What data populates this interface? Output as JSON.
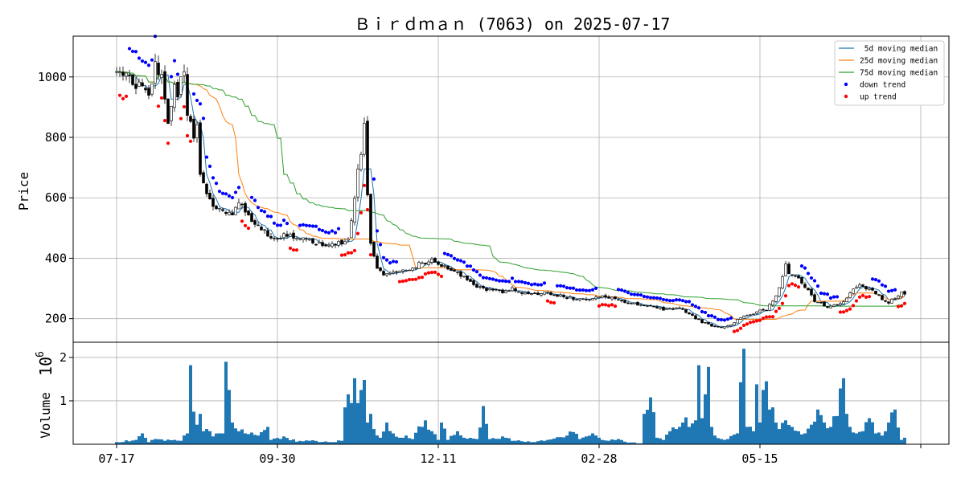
{
  "chart_data": {
    "type": "candlestick",
    "title": "Ｂｉｒｄｍａｎ (7063) on 2025-07-17",
    "ylabel_price": "Price",
    "ylabel_volume": "Volume",
    "volume_exponent_base": "10",
    "volume_exponent_power": "6",
    "price_ylim": [
      122,
      1135
    ],
    "price_yticks": [
      200,
      400,
      600,
      800,
      1000
    ],
    "volume_ylim": [
      0,
      2.35
    ],
    "volume_yticks": [
      1,
      2
    ],
    "x_ticks": [
      {
        "index": 0,
        "label": "07-17"
      },
      {
        "index": 50,
        "label": "09-30"
      },
      {
        "index": 100,
        "label": "12-11"
      },
      {
        "index": 150,
        "label": "02-28"
      },
      {
        "index": 200,
        "label": "05-15"
      },
      {
        "index": 250,
        "label": ""
      }
    ],
    "grid": true,
    "legend_position": "top-right",
    "legend": [
      {
        "label": " 5d moving median",
        "color": "#1f77b4",
        "kind": "line"
      },
      {
        "label": "25d moving median",
        "color": "#ff7f0e",
        "kind": "line"
      },
      {
        "label": "75d moving median",
        "color": "#2ca02c",
        "kind": "line"
      },
      {
        "label": "down trend",
        "color": "#0000ff",
        "kind": "dot"
      },
      {
        "label": "up trend",
        "color": "#ff0000",
        "kind": "dot"
      }
    ],
    "n_days": 246,
    "anchors": [
      [
        0,
        1020
      ],
      [
        5,
        990
      ],
      [
        8,
        955
      ],
      [
        10,
        935
      ],
      [
        12,
        1040
      ],
      [
        14,
        1000
      ],
      [
        16,
        850
      ],
      [
        18,
        960
      ],
      [
        19,
        940
      ],
      [
        20,
        990
      ],
      [
        21,
        1010
      ],
      [
        22,
        880
      ],
      [
        24,
        800
      ],
      [
        25,
        850
      ],
      [
        26,
        680
      ],
      [
        27,
        640
      ],
      [
        28,
        610
      ],
      [
        30,
        570
      ],
      [
        33,
        560
      ],
      [
        36,
        545
      ],
      [
        38,
        580
      ],
      [
        40,
        560
      ],
      [
        42,
        520
      ],
      [
        44,
        500
      ],
      [
        46,
        490
      ],
      [
        48,
        470
      ],
      [
        50,
        470
      ],
      [
        53,
        480
      ],
      [
        55,
        470
      ],
      [
        58,
        470
      ],
      [
        60,
        460
      ],
      [
        63,
        450
      ],
      [
        66,
        445
      ],
      [
        68,
        450
      ],
      [
        70,
        455
      ],
      [
        72,
        470
      ],
      [
        73,
        520
      ],
      [
        74,
        600
      ],
      [
        75,
        700
      ],
      [
        76,
        750
      ],
      [
        77,
        860
      ],
      [
        78,
        620
      ],
      [
        79,
        450
      ],
      [
        80,
        400
      ],
      [
        81,
        370
      ],
      [
        83,
        340
      ],
      [
        85,
        350
      ],
      [
        88,
        360
      ],
      [
        90,
        360
      ],
      [
        92,
        370
      ],
      [
        94,
        380
      ],
      [
        96,
        385
      ],
      [
        98,
        400
      ],
      [
        100,
        380
      ],
      [
        103,
        370
      ],
      [
        106,
        350
      ],
      [
        110,
        320
      ],
      [
        113,
        300
      ],
      [
        116,
        295
      ],
      [
        120,
        290
      ],
      [
        123,
        300
      ],
      [
        126,
        285
      ],
      [
        130,
        280
      ],
      [
        133,
        285
      ],
      [
        136,
        280
      ],
      [
        140,
        270
      ],
      [
        143,
        265
      ],
      [
        146,
        265
      ],
      [
        150,
        275
      ],
      [
        153,
        270
      ],
      [
        156,
        260
      ],
      [
        160,
        250
      ],
      [
        163,
        245
      ],
      [
        166,
        240
      ],
      [
        168,
        235
      ],
      [
        170,
        230
      ],
      [
        172,
        230
      ],
      [
        174,
        235
      ],
      [
        176,
        230
      ],
      [
        178,
        215
      ],
      [
        180,
        200
      ],
      [
        182,
        190
      ],
      [
        184,
        180
      ],
      [
        186,
        175
      ],
      [
        188,
        170
      ],
      [
        190,
        175
      ],
      [
        192,
        190
      ],
      [
        194,
        205
      ],
      [
        196,
        210
      ],
      [
        198,
        215
      ],
      [
        200,
        225
      ],
      [
        202,
        230
      ],
      [
        204,
        260
      ],
      [
        206,
        300
      ],
      [
        207,
        340
      ],
      [
        208,
        380
      ],
      [
        209,
        350
      ],
      [
        211,
        340
      ],
      [
        213,
        320
      ],
      [
        215,
        290
      ],
      [
        217,
        260
      ],
      [
        219,
        250
      ],
      [
        221,
        240
      ],
      [
        223,
        245
      ],
      [
        225,
        250
      ],
      [
        227,
        270
      ],
      [
        229,
        300
      ],
      [
        231,
        310
      ],
      [
        233,
        300
      ],
      [
        235,
        295
      ],
      [
        237,
        275
      ],
      [
        238,
        260
      ],
      [
        240,
        255
      ],
      [
        242,
        270
      ],
      [
        244,
        285
      ],
      [
        245,
        280
      ]
    ],
    "volume_anchors": [
      [
        0,
        0.05
      ],
      [
        6,
        0.1
      ],
      [
        8,
        0.25
      ],
      [
        10,
        0.05
      ],
      [
        12,
        0.12
      ],
      [
        15,
        0.08
      ],
      [
        18,
        0.1
      ],
      [
        20,
        0.08
      ],
      [
        22,
        0.25
      ],
      [
        23,
        1.82
      ],
      [
        24,
        0.75
      ],
      [
        25,
        0.45
      ],
      [
        26,
        0.7
      ],
      [
        27,
        0.3
      ],
      [
        28,
        0.35
      ],
      [
        30,
        0.18
      ],
      [
        33,
        0.25
      ],
      [
        34,
        1.9
      ],
      [
        35,
        1.25
      ],
      [
        36,
        0.5
      ],
      [
        38,
        0.3
      ],
      [
        40,
        0.25
      ],
      [
        44,
        0.2
      ],
      [
        47,
        0.4
      ],
      [
        48,
        0.1
      ],
      [
        52,
        0.18
      ],
      [
        56,
        0.06
      ],
      [
        60,
        0.08
      ],
      [
        66,
        0.05
      ],
      [
        70,
        0.08
      ],
      [
        71,
        0.85
      ],
      [
        72,
        1.15
      ],
      [
        73,
        0.95
      ],
      [
        74,
        1.52
      ],
      [
        75,
        0.95
      ],
      [
        76,
        1.25
      ],
      [
        77,
        1.48
      ],
      [
        78,
        0.5
      ],
      [
        79,
        0.7
      ],
      [
        80,
        0.35
      ],
      [
        82,
        0.15
      ],
      [
        84,
        0.5
      ],
      [
        86,
        0.25
      ],
      [
        88,
        0.15
      ],
      [
        90,
        0.2
      ],
      [
        92,
        0.12
      ],
      [
        96,
        0.55
      ],
      [
        98,
        0.3
      ],
      [
        100,
        0.1
      ],
      [
        101,
        0.5
      ],
      [
        103,
        0.1
      ],
      [
        106,
        0.3
      ],
      [
        108,
        0.15
      ],
      [
        112,
        0.12
      ],
      [
        114,
        0.88
      ],
      [
        116,
        0.12
      ],
      [
        120,
        0.18
      ],
      [
        124,
        0.08
      ],
      [
        130,
        0.05
      ],
      [
        134,
        0.1
      ],
      [
        140,
        0.2
      ],
      [
        142,
        0.28
      ],
      [
        144,
        0.12
      ],
      [
        146,
        0.18
      ],
      [
        148,
        0.25
      ],
      [
        150,
        0.15
      ],
      [
        153,
        0.08
      ],
      [
        156,
        0.12
      ],
      [
        158,
        0.06
      ],
      [
        160,
        0.04
      ],
      [
        163,
        0.02
      ],
      [
        164,
        0.7
      ],
      [
        166,
        1.08
      ],
      [
        168,
        0.15
      ],
      [
        170,
        0.1
      ],
      [
        172,
        0.3
      ],
      [
        174,
        0.35
      ],
      [
        176,
        0.5
      ],
      [
        177,
        0.62
      ],
      [
        178,
        0.4
      ],
      [
        180,
        0.55
      ],
      [
        181,
        1.82
      ],
      [
        182,
        0.6
      ],
      [
        183,
        1.15
      ],
      [
        184,
        1.78
      ],
      [
        185,
        0.4
      ],
      [
        186,
        0.2
      ],
      [
        188,
        0.12
      ],
      [
        190,
        0.12
      ],
      [
        193,
        0.25
      ],
      [
        195,
        2.2
      ],
      [
        196,
        0.4
      ],
      [
        198,
        0.3
      ],
      [
        199,
        1.38
      ],
      [
        200,
        0.5
      ],
      [
        201,
        1.25
      ],
      [
        202,
        1.45
      ],
      [
        203,
        0.8
      ],
      [
        204,
        0.85
      ],
      [
        205,
        0.5
      ],
      [
        206,
        0.35
      ],
      [
        208,
        0.55
      ],
      [
        210,
        0.4
      ],
      [
        212,
        0.3
      ],
      [
        214,
        0.25
      ],
      [
        216,
        0.45
      ],
      [
        218,
        0.8
      ],
      [
        220,
        0.5
      ],
      [
        222,
        0.4
      ],
      [
        224,
        0.65
      ],
      [
        226,
        1.52
      ],
      [
        227,
        0.7
      ],
      [
        228,
        0.4
      ],
      [
        230,
        0.25
      ],
      [
        232,
        0.3
      ],
      [
        234,
        0.6
      ],
      [
        236,
        0.25
      ],
      [
        238,
        0.2
      ],
      [
        240,
        0.5
      ],
      [
        242,
        0.8
      ],
      [
        244,
        0.1
      ],
      [
        245,
        0.15
      ]
    ]
  }
}
